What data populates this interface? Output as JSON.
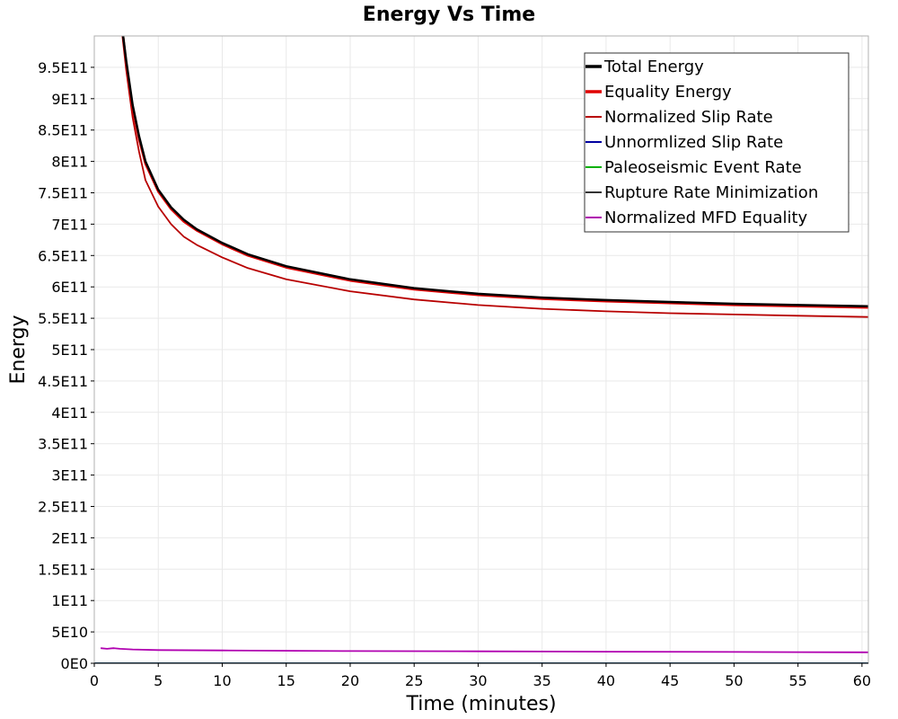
{
  "chart_data": {
    "type": "line",
    "title": "Energy Vs Time",
    "xlabel": "Time (minutes)",
    "ylabel": "Energy",
    "xlim": [
      0,
      60.5
    ],
    "ylim": [
      0,
      1000000000000.0
    ],
    "grid": true,
    "legend_position": "top-right",
    "x_ticks": [
      0,
      5,
      10,
      15,
      20,
      25,
      30,
      35,
      40,
      45,
      50,
      55,
      60
    ],
    "x_tick_labels": [
      "0",
      "5",
      "10",
      "15",
      "20",
      "25",
      "30",
      "35",
      "40",
      "45",
      "50",
      "55",
      "60"
    ],
    "y_ticks": [
      0,
      50000000000.0,
      100000000000.0,
      150000000000.0,
      200000000000.0,
      250000000000.0,
      300000000000.0,
      350000000000.0,
      400000000000.0,
      450000000000.0,
      500000000000.0,
      550000000000.0,
      600000000000.0,
      650000000000.0,
      700000000000.0,
      750000000000.0,
      800000000000.0,
      850000000000.0,
      900000000000.0,
      950000000000.0
    ],
    "y_tick_labels": [
      "0E0",
      "5E10",
      "1E11",
      "1.5E11",
      "2E11",
      "2.5E11",
      "3E11",
      "3.5E11",
      "4E11",
      "4.5E11",
      "5E11",
      "5.5E11",
      "6E11",
      "6.5E11",
      "7E11",
      "7.5E11",
      "8E11",
      "8.5E11",
      "9E11",
      "9.5E11"
    ],
    "series": [
      {
        "name": "Total Energy",
        "color": "#000000",
        "width": 2.5,
        "x": [
          2.25,
          2.5,
          3,
          3.5,
          4,
          5,
          6,
          7,
          8,
          10,
          12,
          15,
          20,
          25,
          30,
          35,
          40,
          45,
          50,
          55,
          60.5
        ],
        "y": [
          1000000000000.0,
          960000000000.0,
          890000000000.0,
          840000000000.0,
          800000000000.0,
          755000000000.0,
          727000000000.0,
          707000000000.0,
          692000000000.0,
          670000000000.0,
          652000000000.0,
          633000000000.0,
          612000000000.0,
          598000000000.0,
          589000000000.0,
          583000000000.0,
          579000000000.0,
          576000000000.0,
          573000000000.0,
          571000000000.0,
          569000000000.0
        ]
      },
      {
        "name": "Equality Energy",
        "color": "#e00000",
        "width": 2.5,
        "x": [
          2.25,
          2.5,
          3,
          3.5,
          4,
          5,
          6,
          7,
          8,
          10,
          12,
          15,
          20,
          25,
          30,
          35,
          40,
          45,
          50,
          55,
          60.5
        ],
        "y": [
          1000000000000.0,
          955000000000.0,
          885000000000.0,
          835000000000.0,
          796000000000.0,
          752000000000.0,
          724000000000.0,
          704000000000.0,
          690000000000.0,
          668000000000.0,
          650000000000.0,
          631000000000.0,
          610000000000.0,
          596000000000.0,
          587000000000.0,
          581000000000.0,
          577000000000.0,
          574000000000.0,
          571000000000.0,
          569000000000.0,
          567000000000.0
        ]
      },
      {
        "name": "Normalized Slip Rate",
        "color": "#b80000",
        "width": 1.8,
        "x": [
          2.2,
          2.5,
          3,
          3.5,
          4,
          5,
          6,
          7,
          8,
          10,
          12,
          15,
          20,
          25,
          30,
          35,
          40,
          45,
          50,
          55,
          60.5
        ],
        "y": [
          1000000000000.0,
          945000000000.0,
          870000000000.0,
          815000000000.0,
          770000000000.0,
          728000000000.0,
          700000000000.0,
          680000000000.0,
          667000000000.0,
          647000000000.0,
          630000000000.0,
          612000000000.0,
          593000000000.0,
          580000000000.0,
          571000000000.0,
          565000000000.0,
          561000000000.0,
          558000000000.0,
          556000000000.0,
          554000000000.0,
          552000000000.0
        ]
      },
      {
        "name": "Unnormlized Slip Rate",
        "color": "#0000a0",
        "width": 1.5,
        "x": [
          0,
          60.5
        ],
        "y": [
          0,
          0
        ]
      },
      {
        "name": "Paleoseismic Event Rate",
        "color": "#00b000",
        "width": 1.5,
        "x": [
          0,
          60.5
        ],
        "y": [
          0,
          0
        ]
      },
      {
        "name": "Rupture Rate Minimization",
        "color": "#333333",
        "width": 1.5,
        "x": [
          0,
          60.5
        ],
        "y": [
          0,
          0
        ]
      },
      {
        "name": "Normalized MFD Equality",
        "color": "#b000b0",
        "width": 1.8,
        "x": [
          0.5,
          1,
          1.5,
          2,
          3,
          5,
          10,
          20,
          30,
          40,
          50,
          60.5
        ],
        "y": [
          24000000000.0,
          23000000000.0,
          24000000000.0,
          23000000000.0,
          22000000000.0,
          21000000000.0,
          20500000000.0,
          19500000000.0,
          19000000000.0,
          18500000000.0,
          18000000000.0,
          17500000000.0
        ]
      }
    ]
  }
}
